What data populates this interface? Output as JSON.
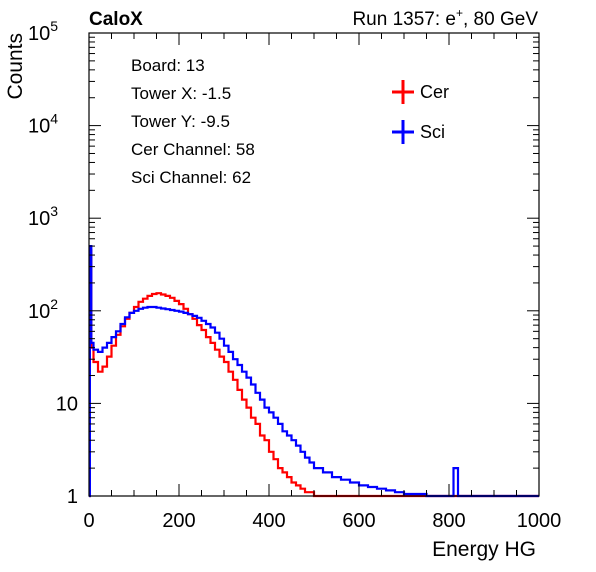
{
  "header": {
    "experiment": "CaloX",
    "run_text": "Run 1357: e",
    "run_sup": "+",
    "run_tail": ", 80 GeV"
  },
  "info_box": {
    "lines": [
      "Board: 13",
      "Tower X: -1.5",
      "Tower Y: -9.5",
      "Cer Channel: 58",
      "Sci Channel: 62"
    ]
  },
  "chart_data": {
    "type": "line",
    "xlabel": "Energy HG",
    "ylabel": "Counts",
    "xlim": [
      0,
      1000
    ],
    "ylim": [
      1,
      100000
    ],
    "yscale": "log",
    "x_ticks": [
      "0",
      "200",
      "400",
      "600",
      "800",
      "1000"
    ],
    "y_ticks": [
      {
        "base": "1",
        "exp": ""
      },
      {
        "base": "10",
        "exp": ""
      },
      {
        "base": "10",
        "exp": "2"
      },
      {
        "base": "10",
        "exp": "3"
      },
      {
        "base": "10",
        "exp": "4"
      },
      {
        "base": "10",
        "exp": "5"
      }
    ],
    "legend_position": "top-right",
    "series": [
      {
        "name": "Cer",
        "color": "#ff0000",
        "x": [
          0,
          2,
          5,
          10,
          20,
          30,
          40,
          50,
          60,
          70,
          80,
          90,
          100,
          110,
          120,
          130,
          140,
          150,
          160,
          170,
          180,
          190,
          200,
          210,
          220,
          230,
          240,
          250,
          260,
          270,
          280,
          290,
          300,
          310,
          320,
          330,
          340,
          350,
          360,
          370,
          380,
          390,
          400,
          410,
          420,
          430,
          440,
          450,
          460,
          470,
          480,
          490,
          500,
          510,
          520
        ],
        "y": [
          1,
          450,
          40,
          28,
          22,
          25,
          32,
          42,
          55,
          68,
          82,
          95,
          110,
          125,
          135,
          145,
          152,
          155,
          150,
          145,
          138,
          128,
          118,
          105,
          92,
          82,
          70,
          62,
          52,
          45,
          38,
          32,
          28,
          22,
          18,
          14,
          11,
          9,
          7,
          6,
          4.5,
          4,
          3,
          2.5,
          2,
          1.8,
          1.6,
          1.4,
          1.3,
          1.2,
          1.1,
          1.1,
          1,
          1,
          1
        ]
      },
      {
        "name": "Sci",
        "color": "#0000ff",
        "x": [
          0,
          2,
          5,
          10,
          20,
          30,
          40,
          50,
          60,
          70,
          80,
          90,
          100,
          110,
          120,
          130,
          140,
          150,
          160,
          170,
          180,
          190,
          200,
          210,
          220,
          230,
          240,
          250,
          260,
          270,
          280,
          290,
          300,
          310,
          320,
          330,
          340,
          350,
          360,
          370,
          380,
          390,
          400,
          410,
          420,
          430,
          440,
          450,
          460,
          470,
          480,
          490,
          500,
          520,
          540,
          560,
          580,
          600,
          620,
          640,
          660,
          680,
          700,
          750,
          800,
          810,
          820,
          900,
          1000
        ],
        "y": [
          1,
          500,
          45,
          38,
          36,
          40,
          45,
          52,
          60,
          72,
          85,
          95,
          100,
          105,
          108,
          110,
          110,
          108,
          106,
          104,
          102,
          100,
          98,
          95,
          92,
          88,
          84,
          78,
          72,
          66,
          58,
          50,
          42,
          36,
          30,
          26,
          22,
          19,
          16,
          13,
          11,
          9,
          8,
          7,
          6,
          5,
          4.5,
          4,
          3.5,
          3,
          2.6,
          2.3,
          2,
          1.8,
          1.6,
          1.5,
          1.4,
          1.3,
          1.25,
          1.2,
          1.15,
          1.1,
          1.05,
          1,
          1,
          2,
          1,
          1,
          1
        ]
      }
    ]
  }
}
